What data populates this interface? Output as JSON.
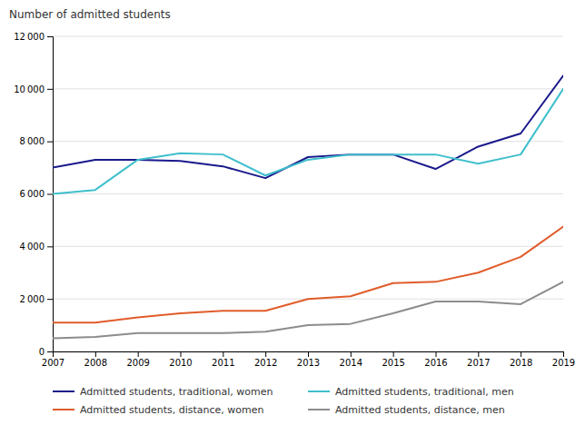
{
  "chart_data": {
    "type": "line",
    "y_label": "Number of admitted students",
    "x": [
      2007,
      2008,
      2009,
      2010,
      2011,
      2012,
      2013,
      2014,
      2015,
      2016,
      2017,
      2018,
      2019
    ],
    "series": [
      {
        "name": "Admitted students, traditional, women",
        "color": "#1A1A8C",
        "values": [
          7000,
          7300,
          7300,
          7250,
          7050,
          6600,
          7400,
          7500,
          7500,
          6950,
          7800,
          8300,
          10500
        ]
      },
      {
        "name": "Admitted students, traditional, men",
        "color": "#3FBFCC",
        "values": [
          6000,
          6150,
          7300,
          7550,
          7500,
          6700,
          7300,
          7500,
          7500,
          7500,
          7150,
          7500,
          10000
        ]
      },
      {
        "name": "Admitted students, distance, women",
        "color": "#E05C2A",
        "values": [
          1100,
          1100,
          1300,
          1450,
          1550,
          1550,
          2000,
          2100,
          2600,
          2650,
          3000,
          3600,
          4750
        ]
      },
      {
        "name": "Admitted students, distance, men",
        "color": "#8C8C8C",
        "values": [
          500,
          550,
          700,
          700,
          700,
          750,
          1000,
          1050,
          1450,
          1900,
          1900,
          1800,
          2650
        ]
      }
    ],
    "xlim": [
      2007,
      2019
    ],
    "xticks": [
      2007,
      2008,
      2009,
      2010,
      2011,
      2012,
      2013,
      2014,
      2015,
      2016,
      2017,
      2018,
      2019
    ],
    "ylim": [
      0,
      12000
    ],
    "yticks": [
      0,
      {
        "value": 2000,
        "label": "2 000"
      },
      {
        "value": 4000,
        "label": "4 000"
      },
      {
        "value": 6000,
        "label": "6 000"
      },
      {
        "value": 8000,
        "label": "8 000"
      },
      {
        "value": 10000,
        "label": "10 000"
      },
      {
        "value": 12000,
        "label": "12 000"
      }
    ],
    "grid": true,
    "legend": "bottom"
  }
}
